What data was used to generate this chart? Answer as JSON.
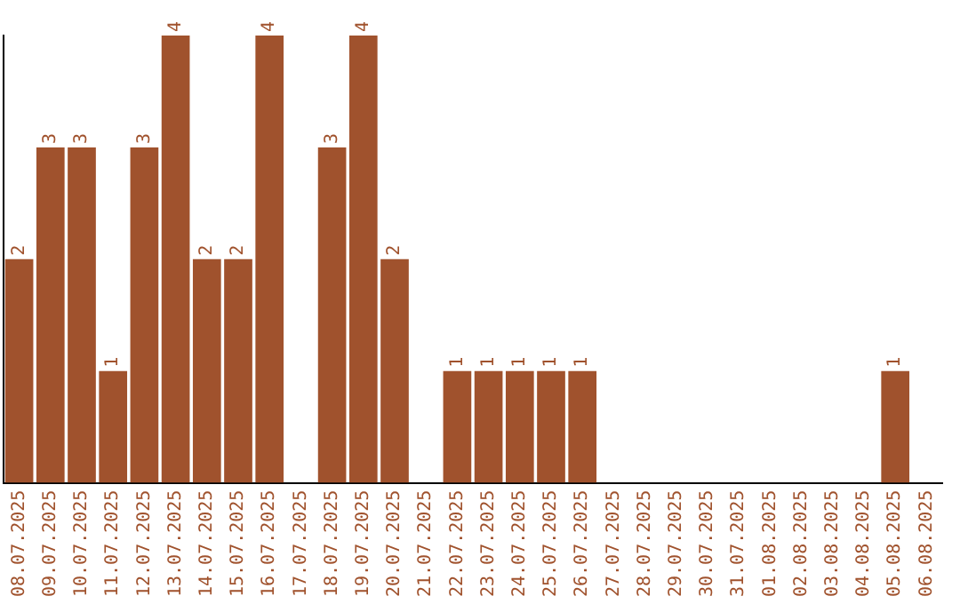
{
  "chart_data": {
    "type": "bar",
    "categories": [
      "08.07.2025",
      "09.07.2025",
      "10.07.2025",
      "11.07.2025",
      "12.07.2025",
      "13.07.2025",
      "14.07.2025",
      "15.07.2025",
      "16.07.2025",
      "17.07.2025",
      "18.07.2025",
      "19.07.2025",
      "20.07.2025",
      "21.07.2025",
      "22.07.2025",
      "23.07.2025",
      "24.07.2025",
      "25.07.2025",
      "26.07.2025",
      "27.07.2025",
      "28.07.2025",
      "29.07.2025",
      "30.07.2025",
      "31.07.2025",
      "01.08.2025",
      "02.08.2025",
      "03.08.2025",
      "04.08.2025",
      "05.08.2025",
      "06.08.2025"
    ],
    "values": [
      2,
      3,
      3,
      1,
      3,
      4,
      2,
      2,
      4,
      0,
      3,
      4,
      2,
      0,
      1,
      1,
      1,
      1,
      1,
      0,
      0,
      0,
      0,
      0,
      0,
      0,
      0,
      0,
      1,
      0
    ],
    "value_labels": [
      "2",
      "3",
      "3",
      "1",
      "3",
      "4",
      "2",
      "2",
      "4",
      null,
      "3",
      "4",
      "2",
      null,
      "1",
      "1",
      "1",
      "1",
      "1",
      null,
      null,
      null,
      null,
      null,
      null,
      null,
      null,
      null,
      "1",
      null
    ],
    "color": "#a0522d",
    "grid": false,
    "legend": false,
    "tick_labels": "x"
  }
}
